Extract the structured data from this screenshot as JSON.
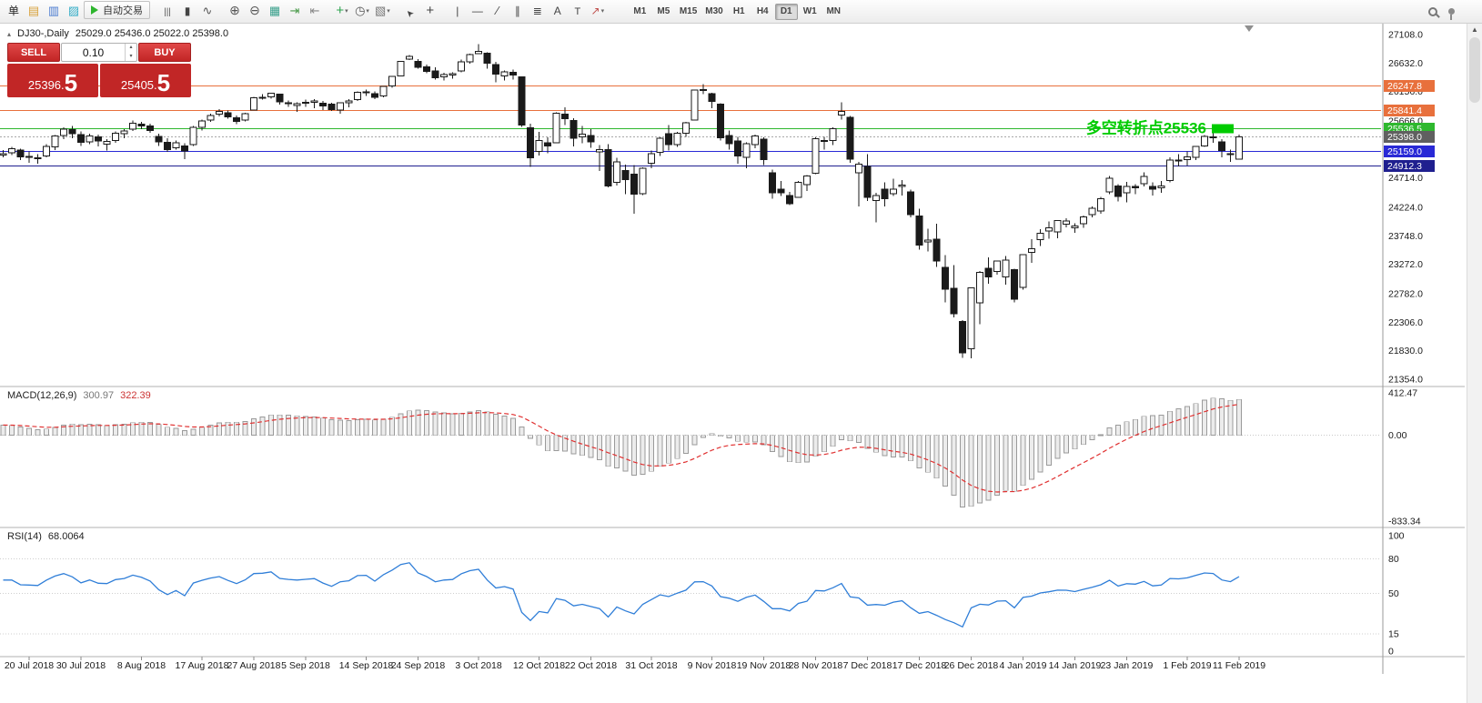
{
  "colors": {
    "candle_stroke": "#1a1a1a",
    "bull_fill": "#ffffff",
    "bear_fill": "#1a1a1a",
    "macd_hist_fill": "#ececec",
    "macd_hist_stroke": "#9a9a9a",
    "macd_signal": "#e03030",
    "rsi_line": "#2f7ed8",
    "orange_level": "#e8703c",
    "green_level": "#2eb82e",
    "blue_level": "#2929d6",
    "navy_level": "#1f1f8f",
    "bid_line": "#a8a8a8",
    "bid_tag": "#606060",
    "annotation_green": "#00cc00"
  },
  "toolbar": {
    "caret_glyph": "▾",
    "left_items": [
      {
        "name": "new-order-button",
        "glyph": "单",
        "color": "#222222",
        "size": 12
      },
      {
        "name": "new-chart-icon",
        "glyph": "▤",
        "color": "#d8a13c",
        "size": 13
      },
      {
        "name": "profiles-icon",
        "glyph": "▥",
        "color": "#4a7bd0",
        "size": 13
      },
      {
        "name": "market-watch-icon",
        "glyph": "▨",
        "color": "#38aec8",
        "size": 13
      },
      {
        "name": "auto-trading-button",
        "kind": "auto",
        "label": "自动交易"
      },
      {
        "kind": "sep"
      },
      {
        "name": "bar-chart-icon",
        "glyph": "|||",
        "color": "#555555",
        "size": 10
      },
      {
        "name": "candlestick-chart-icon",
        "glyph": "▮",
        "color": "#444444",
        "size": 12
      },
      {
        "name": "line-chart-icon",
        "glyph": "∿",
        "color": "#555555",
        "size": 13
      },
      {
        "kind": "sep"
      },
      {
        "name": "zoom-in-icon",
        "glyph": "⊕",
        "color": "#555555",
        "size": 14
      },
      {
        "name": "zoom-out-icon",
        "glyph": "⊖",
        "color": "#555555",
        "size": 14
      },
      {
        "name": "tile-windows-icon",
        "glyph": "▦",
        "color": "#3aa08c",
        "size": 13
      },
      {
        "name": "auto-scroll-icon",
        "glyph": "⇥",
        "color": "#4a9a4a",
        "size": 13
      },
      {
        "name": "chart-shift-icon",
        "glyph": "⇤",
        "color": "#888888",
        "size": 13
      },
      {
        "kind": "sep"
      },
      {
        "name": "indicators-button",
        "glyph": "+",
        "color": "#2da44e",
        "size": 15,
        "caret": true
      },
      {
        "name": "periods-button",
        "glyph": "◷",
        "color": "#555555",
        "size": 13,
        "caret": true
      },
      {
        "name": "templates-button",
        "glyph": "▧",
        "color": "#777777",
        "size": 13,
        "caret": true
      },
      {
        "kind": "sep"
      },
      {
        "name": "cursor-icon",
        "glyph": "➤",
        "color": "#444444",
        "size": 10,
        "rotate": -135
      },
      {
        "name": "crosshair-icon",
        "glyph": "+",
        "color": "#444444",
        "size": 15
      },
      {
        "kind": "sep"
      },
      {
        "name": "vertical-line-icon",
        "glyph": "|",
        "color": "#444444",
        "size": 12
      },
      {
        "name": "horizontal-line-icon",
        "glyph": "—",
        "color": "#444444",
        "size": 12
      },
      {
        "name": "trendline-icon",
        "glyph": "∕",
        "color": "#444444",
        "size": 13
      },
      {
        "name": "channel-icon",
        "glyph": "∥",
        "color": "#444444",
        "size": 12
      },
      {
        "name": "fibonacci-icon",
        "glyph": "≣",
        "color": "#444444",
        "size": 12
      },
      {
        "name": "text-icon",
        "glyph": "A",
        "color": "#444444",
        "size": 12
      },
      {
        "name": "label-icon",
        "glyph": "T",
        "color": "#444444",
        "size": 11
      },
      {
        "name": "arrows-button",
        "glyph": "↗",
        "color": "#c0504d",
        "size": 12,
        "caret": true
      },
      {
        "kind": "sep"
      }
    ],
    "timeframes": {
      "items": [
        "M1",
        "M5",
        "M15",
        "M30",
        "H1",
        "H4",
        "D1",
        "W1",
        "MN"
      ],
      "active": "D1"
    },
    "right_items": [
      {
        "name": "search-icon"
      },
      {
        "name": "pin-icon"
      }
    ]
  },
  "symbol_info": {
    "toggle": "▴",
    "label": "DJ30-,Daily",
    "ohlc": "25029.0 25436.0 25022.0 25398.0"
  },
  "trade_panel": {
    "sell_label": "SELL",
    "buy_label": "BUY",
    "volume": "0.10",
    "step_up_glyph": "▴",
    "step_down_glyph": "▾",
    "bid_int": "25396",
    "bid_frac": "5",
    "ask_int": "25405",
    "ask_frac": "5"
  },
  "price_axis": {
    "values": [
      27108.0,
      26632.0,
      26156.0,
      25666.0,
      25190.0,
      24714.0,
      24224.0,
      23748.0,
      23272.0,
      22782.0,
      22306.0,
      21830.0,
      21354.0
    ]
  },
  "levels": [
    {
      "value": 26247.8,
      "tag": "26247.8",
      "color": "#e8703c",
      "style": "solid"
    },
    {
      "value": 25841.4,
      "tag": "25841.4",
      "color": "#e8703c",
      "style": "solid"
    },
    {
      "value": 25536.5,
      "tag": "25536.5",
      "color": "#2eb82e",
      "style": "solid"
    },
    {
      "value": 25398.0,
      "tag": "25398.0",
      "color": "#a8a8a8",
      "style": "dot",
      "tagbg": "#606060"
    },
    {
      "value": 25159.0,
      "tag": "25159.0",
      "color": "#2929d6",
      "style": "solid"
    },
    {
      "value": 24912.3,
      "tag": "24912.3",
      "color": "#1f1f8f",
      "style": "solid"
    }
  ],
  "annotation": {
    "text": "多空转折点25536",
    "color": "#00cc00"
  },
  "indicators": {
    "macd": {
      "label": "MACD(12,26,9)",
      "value1": "300.97",
      "value2": "322.39",
      "axis": [
        412.47,
        0.0,
        -833.34
      ]
    },
    "rsi": {
      "label": "RSI(14)",
      "value": "68.0064",
      "axis": [
        100,
        80,
        50,
        15,
        0
      ],
      "levels": [
        80,
        50,
        15
      ]
    }
  },
  "scrollbar": {
    "up_glyph": "▲"
  },
  "chart_data": {
    "type": "candlestick",
    "symbol": "DJ30-",
    "timeframe": "Daily",
    "title": "DJ30-,Daily",
    "y_axis": {
      "min": 21354,
      "max": 27108
    },
    "current_bar": {
      "open": 25029.0,
      "high": 25436.0,
      "low": 25022.0,
      "close": 25398.0
    },
    "candles": [
      [
        25100,
        25180,
        25060,
        25119
      ],
      [
        25130,
        25230,
        25100,
        25199
      ],
      [
        25180,
        25200,
        25010,
        25064
      ],
      [
        25070,
        25160,
        24970,
        25058
      ],
      [
        25050,
        25110,
        24950,
        25044
      ],
      [
        25080,
        25280,
        25060,
        25241
      ],
      [
        25230,
        25430,
        25180,
        25414
      ],
      [
        25420,
        25560,
        25360,
        25527
      ],
      [
        25520,
        25580,
        25380,
        25451
      ],
      [
        25440,
        25490,
        25250,
        25306
      ],
      [
        25320,
        25450,
        25280,
        25415
      ],
      [
        25400,
        25440,
        25240,
        25334
      ],
      [
        25280,
        25360,
        25170,
        25326
      ],
      [
        25340,
        25490,
        25300,
        25463
      ],
      [
        25450,
        25530,
        25380,
        25502
      ],
      [
        25530,
        25670,
        25500,
        25628
      ],
      [
        25610,
        25650,
        25530,
        25584
      ],
      [
        25580,
        25620,
        25470,
        25509
      ],
      [
        25410,
        25450,
        25250,
        25313
      ],
      [
        25310,
        25380,
        25150,
        25188
      ],
      [
        25220,
        25340,
        25190,
        25300
      ],
      [
        25250,
        25290,
        25030,
        25162
      ],
      [
        25270,
        25580,
        25250,
        25559
      ],
      [
        25560,
        25690,
        25510,
        25669
      ],
      [
        25680,
        25790,
        25650,
        25759
      ],
      [
        25780,
        25860,
        25740,
        25822
      ],
      [
        25800,
        25840,
        25700,
        25734
      ],
      [
        25720,
        25760,
        25610,
        25657
      ],
      [
        25680,
        25800,
        25660,
        25790
      ],
      [
        25850,
        26070,
        25840,
        26050
      ],
      [
        26060,
        26110,
        26020,
        26064
      ],
      [
        26070,
        26140,
        26040,
        26125
      ],
      [
        26110,
        26120,
        25940,
        25987
      ],
      [
        25970,
        26010,
        25900,
        25965
      ],
      [
        25920,
        25980,
        25820,
        25952
      ],
      [
        25960,
        26020,
        25900,
        25975
      ],
      [
        25980,
        26030,
        25880,
        25996
      ],
      [
        25960,
        26000,
        25850,
        25917
      ],
      [
        25950,
        25970,
        25830,
        25857
      ],
      [
        25850,
        25980,
        25790,
        25971
      ],
      [
        25970,
        26030,
        25890,
        25999
      ],
      [
        26020,
        26160,
        26000,
        26146
      ],
      [
        26140,
        26190,
        26080,
        26154
      ],
      [
        26120,
        26160,
        26030,
        26062
      ],
      [
        26080,
        26250,
        26060,
        26246
      ],
      [
        26250,
        26410,
        26220,
        26406
      ],
      [
        26420,
        26670,
        26410,
        26657
      ],
      [
        26700,
        26770,
        26680,
        26744
      ],
      [
        26660,
        26700,
        26540,
        26562
      ],
      [
        26570,
        26610,
        26460,
        26492
      ],
      [
        26500,
        26560,
        26360,
        26385
      ],
      [
        26400,
        26470,
        26340,
        26440
      ],
      [
        26430,
        26480,
        26370,
        26458
      ],
      [
        26500,
        26690,
        26480,
        26651
      ],
      [
        26650,
        26790,
        26620,
        26774
      ],
      [
        26790,
        26951,
        26780,
        26828
      ],
      [
        26800,
        26810,
        26540,
        26627
      ],
      [
        26610,
        26650,
        26310,
        26447
      ],
      [
        26420,
        26510,
        26340,
        26487
      ],
      [
        26480,
        26520,
        26360,
        26430
      ],
      [
        26400,
        26410,
        25570,
        25599
      ],
      [
        25550,
        25620,
        24900,
        25053
      ],
      [
        25160,
        25480,
        25090,
        25340
      ],
      [
        25300,
        25390,
        25130,
        25251
      ],
      [
        25300,
        25810,
        25290,
        25798
      ],
      [
        25780,
        25890,
        25600,
        25707
      ],
      [
        25670,
        25710,
        25240,
        25379
      ],
      [
        25400,
        25580,
        25290,
        25444
      ],
      [
        25420,
        25530,
        25220,
        25317
      ],
      [
        25150,
        25260,
        24830,
        25191
      ],
      [
        25190,
        25280,
        24560,
        24583
      ],
      [
        24640,
        25050,
        24590,
        24985
      ],
      [
        24840,
        24940,
        24440,
        24688
      ],
      [
        24780,
        24930,
        24120,
        24443
      ],
      [
        24450,
        24890,
        24430,
        24875
      ],
      [
        24960,
        25170,
        24880,
        25116
      ],
      [
        25140,
        25390,
        25080,
        25381
      ],
      [
        25450,
        25600,
        25170,
        25271
      ],
      [
        25270,
        25480,
        25230,
        25462
      ],
      [
        25460,
        25650,
        25400,
        25635
      ],
      [
        25680,
        26190,
        25670,
        26180
      ],
      [
        26180,
        26280,
        26110,
        26191
      ],
      [
        26120,
        26140,
        25880,
        25989
      ],
      [
        25950,
        25960,
        25340,
        25387
      ],
      [
        25420,
        25510,
        25190,
        25286
      ],
      [
        25330,
        25400,
        24950,
        25081
      ],
      [
        25060,
        25310,
        24880,
        25289
      ],
      [
        25270,
        25440,
        25210,
        25413
      ],
      [
        25360,
        25390,
        24930,
        25017
      ],
      [
        24800,
        24850,
        24370,
        24466
      ],
      [
        24530,
        24660,
        24410,
        24465
      ],
      [
        24420,
        24480,
        24260,
        24286
      ],
      [
        24390,
        24660,
        24380,
        24640
      ],
      [
        24600,
        24760,
        24500,
        24748
      ],
      [
        24790,
        25390,
        24780,
        25366
      ],
      [
        25330,
        25400,
        25190,
        25339
      ],
      [
        25340,
        25560,
        25260,
        25538
      ],
      [
        25760,
        25980,
        25690,
        25826
      ],
      [
        25730,
        25750,
        24970,
        25027
      ],
      [
        24800,
        24980,
        24240,
        24948
      ],
      [
        24910,
        25110,
        24330,
        24389
      ],
      [
        24340,
        24470,
        23970,
        24423
      ],
      [
        24530,
        24640,
        24240,
        24370
      ],
      [
        24450,
        24700,
        24410,
        24527
      ],
      [
        24570,
        24680,
        24420,
        24597
      ],
      [
        24480,
        24520,
        24060,
        24101
      ],
      [
        24080,
        24200,
        23520,
        23593
      ],
      [
        23650,
        23870,
        23490,
        23676
      ],
      [
        23690,
        23950,
        23230,
        23324
      ],
      [
        23220,
        23430,
        22640,
        22860
      ],
      [
        22870,
        23260,
        22390,
        22445
      ],
      [
        22320,
        22340,
        21710,
        21792
      ],
      [
        21860,
        22880,
        21700,
        22878
      ],
      [
        22630,
        23160,
        22270,
        23139
      ],
      [
        23210,
        23390,
        22950,
        23062
      ],
      [
        23150,
        23330,
        23100,
        23327
      ],
      [
        23060,
        23410,
        22930,
        23346
      ],
      [
        23180,
        23200,
        22640,
        22686
      ],
      [
        22890,
        23440,
        22850,
        23433
      ],
      [
        23470,
        23690,
        23300,
        23531
      ],
      [
        23680,
        23860,
        23580,
        23787
      ],
      [
        23830,
        23990,
        23700,
        23879
      ],
      [
        23810,
        24010,
        23710,
        24002
      ],
      [
        23940,
        24040,
        23890,
        23996
      ],
      [
        23880,
        23960,
        23800,
        23910
      ],
      [
        23950,
        24090,
        23880,
        24066
      ],
      [
        24100,
        24240,
        24060,
        24207
      ],
      [
        24160,
        24400,
        24120,
        24370
      ],
      [
        24480,
        24750,
        24440,
        24706
      ],
      [
        24580,
        24610,
        24320,
        24404
      ],
      [
        24470,
        24650,
        24310,
        24576
      ],
      [
        24570,
        24610,
        24440,
        24553
      ],
      [
        24620,
        24810,
        24570,
        24737
      ],
      [
        24570,
        24640,
        24420,
        24528
      ],
      [
        24550,
        24660,
        24470,
        24580
      ],
      [
        24670,
        25060,
        24640,
        25014
      ],
      [
        25010,
        25110,
        24910,
        24999
      ],
      [
        25020,
        25160,
        24920,
        25064
      ],
      [
        25060,
        25250,
        25010,
        25239
      ],
      [
        25250,
        25430,
        25230,
        25411
      ],
      [
        25400,
        25460,
        25300,
        25390
      ],
      [
        25320,
        25360,
        25060,
        25169
      ],
      [
        25120,
        25190,
        24980,
        25106
      ],
      [
        25029,
        25436,
        25022,
        25398
      ]
    ],
    "date_ticks": [
      {
        "label": "20 Jul 2018",
        "index": 3
      },
      {
        "label": "30 Jul 2018",
        "index": 9
      },
      {
        "label": "8 Aug 2018",
        "index": 16
      },
      {
        "label": "17 Aug 2018",
        "index": 23
      },
      {
        "label": "27 Aug 2018",
        "index": 29
      },
      {
        "label": "5 Sep 2018",
        "index": 35
      },
      {
        "label": "14 Sep 2018",
        "index": 42
      },
      {
        "label": "24 Sep 2018",
        "index": 48
      },
      {
        "label": "3 Oct 2018",
        "index": 55
      },
      {
        "label": "12 Oct 2018",
        "index": 62
      },
      {
        "label": "22 Oct 2018",
        "index": 68
      },
      {
        "label": "31 Oct 2018",
        "index": 75
      },
      {
        "label": "9 Nov 2018",
        "index": 82
      },
      {
        "label": "19 Nov 2018",
        "index": 88
      },
      {
        "label": "28 Nov 2018",
        "index": 94
      },
      {
        "label": "7 Dec 2018",
        "index": 100
      },
      {
        "label": "17 Dec 2018",
        "index": 106
      },
      {
        "label": "26 Dec 2018",
        "index": 112
      },
      {
        "label": "4 Jan 2019",
        "index": 118
      },
      {
        "label": "14 Jan 2019",
        "index": 124
      },
      {
        "label": "23 Jan 2019",
        "index": 130
      },
      {
        "label": "1 Feb 2019",
        "index": 137
      },
      {
        "label": "11 Feb 2019",
        "index": 143
      }
    ]
  }
}
